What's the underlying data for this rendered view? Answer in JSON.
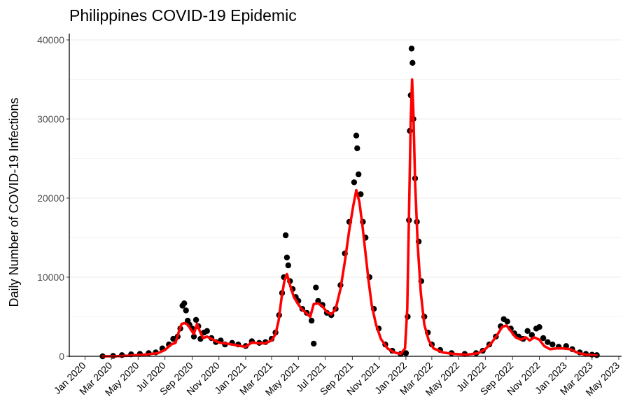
{
  "chart_data": {
    "type": "scatter",
    "title": "Philippines COVID-19 Epidemic",
    "xlabel": "",
    "ylabel": "Daily Number of COVID-19 Infections",
    "xlim": [
      "2020-01-01",
      "2023-05-01"
    ],
    "ylim": [
      0,
      40000
    ],
    "y_ticks": [
      0,
      10000,
      20000,
      30000,
      40000
    ],
    "x_ticks": [
      {
        "date": "2020-01-01",
        "label": "Jan 2020"
      },
      {
        "date": "2020-03-01",
        "label": "Mar 2020"
      },
      {
        "date": "2020-05-01",
        "label": "May 2020"
      },
      {
        "date": "2020-07-01",
        "label": "Jul 2020"
      },
      {
        "date": "2020-09-01",
        "label": "Sep 2020"
      },
      {
        "date": "2020-11-01",
        "label": "Nov 2020"
      },
      {
        "date": "2021-01-01",
        "label": "Jan 2021"
      },
      {
        "date": "2021-03-01",
        "label": "Mar 2021"
      },
      {
        "date": "2021-05-01",
        "label": "May 2021"
      },
      {
        "date": "2021-07-01",
        "label": "Jul 2021"
      },
      {
        "date": "2021-09-01",
        "label": "Sep 2021"
      },
      {
        "date": "2021-11-01",
        "label": "Nov 2021"
      },
      {
        "date": "2022-01-01",
        "label": "Jan 2022"
      },
      {
        "date": "2022-03-01",
        "label": "Mar 2022"
      },
      {
        "date": "2022-05-01",
        "label": "May 2022"
      },
      {
        "date": "2022-07-01",
        "label": "Jul 2022"
      },
      {
        "date": "2022-09-01",
        "label": "Sep 2022"
      },
      {
        "date": "2022-11-01",
        "label": "Nov 2022"
      },
      {
        "date": "2023-01-01",
        "label": "Jan 2023"
      },
      {
        "date": "2023-03-01",
        "label": "Mar 2023"
      },
      {
        "date": "2023-05-01",
        "label": "May 2023"
      }
    ],
    "grid": "horizontal",
    "series": [
      {
        "kind": "points",
        "color": "#000000",
        "points": [
          {
            "x": "2020-02-10",
            "y": 0
          },
          {
            "x": "2020-03-05",
            "y": 50
          },
          {
            "x": "2020-03-25",
            "y": 150
          },
          {
            "x": "2020-04-15",
            "y": 250
          },
          {
            "x": "2020-05-05",
            "y": 300
          },
          {
            "x": "2020-05-25",
            "y": 400
          },
          {
            "x": "2020-06-10",
            "y": 500
          },
          {
            "x": "2020-06-25",
            "y": 1000
          },
          {
            "x": "2020-07-10",
            "y": 1500
          },
          {
            "x": "2020-07-20",
            "y": 2200
          },
          {
            "x": "2020-07-30",
            "y": 2500
          },
          {
            "x": "2020-08-05",
            "y": 3500
          },
          {
            "x": "2020-08-10",
            "y": 6400
          },
          {
            "x": "2020-08-14",
            "y": 6700
          },
          {
            "x": "2020-08-18",
            "y": 5800
          },
          {
            "x": "2020-08-22",
            "y": 4500
          },
          {
            "x": "2020-08-26",
            "y": 4000
          },
          {
            "x": "2020-09-01",
            "y": 3500
          },
          {
            "x": "2020-09-05",
            "y": 2500
          },
          {
            "x": "2020-09-10",
            "y": 4600
          },
          {
            "x": "2020-09-15",
            "y": 3800
          },
          {
            "x": "2020-09-20",
            "y": 2200
          },
          {
            "x": "2020-09-28",
            "y": 3000
          },
          {
            "x": "2020-10-05",
            "y": 3200
          },
          {
            "x": "2020-10-15",
            "y": 2300
          },
          {
            "x": "2020-10-25",
            "y": 1800
          },
          {
            "x": "2020-11-05",
            "y": 2000
          },
          {
            "x": "2020-11-15",
            "y": 1500
          },
          {
            "x": "2020-12-01",
            "y": 1700
          },
          {
            "x": "2020-12-15",
            "y": 1500
          },
          {
            "x": "2021-01-01",
            "y": 1300
          },
          {
            "x": "2021-01-15",
            "y": 1900
          },
          {
            "x": "2021-02-01",
            "y": 1700
          },
          {
            "x": "2021-02-15",
            "y": 1800
          },
          {
            "x": "2021-03-01",
            "y": 2200
          },
          {
            "x": "2021-03-10",
            "y": 3000
          },
          {
            "x": "2021-03-18",
            "y": 5200
          },
          {
            "x": "2021-03-25",
            "y": 8000
          },
          {
            "x": "2021-03-29",
            "y": 10000
          },
          {
            "x": "2021-04-02",
            "y": 15300
          },
          {
            "x": "2021-04-05",
            "y": 12500
          },
          {
            "x": "2021-04-08",
            "y": 11500
          },
          {
            "x": "2021-04-12",
            "y": 9500
          },
          {
            "x": "2021-04-18",
            "y": 8500
          },
          {
            "x": "2021-04-25",
            "y": 7500
          },
          {
            "x": "2021-05-01",
            "y": 7000
          },
          {
            "x": "2021-05-10",
            "y": 6000
          },
          {
            "x": "2021-05-20",
            "y": 5500
          },
          {
            "x": "2021-05-31",
            "y": 4500
          },
          {
            "x": "2021-06-05",
            "y": 1600
          },
          {
            "x": "2021-06-10",
            "y": 8700
          },
          {
            "x": "2021-06-15",
            "y": 7000
          },
          {
            "x": "2021-06-25",
            "y": 6500
          },
          {
            "x": "2021-07-05",
            "y": 5500
          },
          {
            "x": "2021-07-15",
            "y": 5200
          },
          {
            "x": "2021-07-25",
            "y": 6000
          },
          {
            "x": "2021-08-05",
            "y": 9000
          },
          {
            "x": "2021-08-15",
            "y": 13000
          },
          {
            "x": "2021-08-25",
            "y": 17000
          },
          {
            "x": "2021-09-05",
            "y": 22000
          },
          {
            "x": "2021-09-10",
            "y": 27900
          },
          {
            "x": "2021-09-12",
            "y": 26300
          },
          {
            "x": "2021-09-15",
            "y": 23000
          },
          {
            "x": "2021-09-20",
            "y": 20500
          },
          {
            "x": "2021-09-25",
            "y": 17000
          },
          {
            "x": "2021-10-01",
            "y": 15000
          },
          {
            "x": "2021-10-10",
            "y": 10000
          },
          {
            "x": "2021-10-20",
            "y": 6000
          },
          {
            "x": "2021-10-31",
            "y": 3500
          },
          {
            "x": "2021-11-15",
            "y": 1500
          },
          {
            "x": "2021-12-01",
            "y": 700
          },
          {
            "x": "2021-12-20",
            "y": 300
          },
          {
            "x": "2022-01-01",
            "y": 400
          },
          {
            "x": "2022-01-05",
            "y": 5000
          },
          {
            "x": "2022-01-08",
            "y": 17200
          },
          {
            "x": "2022-01-10",
            "y": 28500
          },
          {
            "x": "2022-01-12",
            "y": 33000
          },
          {
            "x": "2022-01-14",
            "y": 38900
          },
          {
            "x": "2022-01-16",
            "y": 37100
          },
          {
            "x": "2022-01-18",
            "y": 30000
          },
          {
            "x": "2022-01-22",
            "y": 22500
          },
          {
            "x": "2022-01-26",
            "y": 17000
          },
          {
            "x": "2022-01-30",
            "y": 14500
          },
          {
            "x": "2022-02-05",
            "y": 9500
          },
          {
            "x": "2022-02-12",
            "y": 5000
          },
          {
            "x": "2022-02-20",
            "y": 3000
          },
          {
            "x": "2022-03-01",
            "y": 1500
          },
          {
            "x": "2022-03-20",
            "y": 800
          },
          {
            "x": "2022-04-15",
            "y": 400
          },
          {
            "x": "2022-05-15",
            "y": 300
          },
          {
            "x": "2022-06-10",
            "y": 400
          },
          {
            "x": "2022-06-25",
            "y": 700
          },
          {
            "x": "2022-07-10",
            "y": 1500
          },
          {
            "x": "2022-07-25",
            "y": 2500
          },
          {
            "x": "2022-08-05",
            "y": 3800
          },
          {
            "x": "2022-08-12",
            "y": 4700
          },
          {
            "x": "2022-08-20",
            "y": 4400
          },
          {
            "x": "2022-08-28",
            "y": 3500
          },
          {
            "x": "2022-09-05",
            "y": 2900
          },
          {
            "x": "2022-09-15",
            "y": 2500
          },
          {
            "x": "2022-09-25",
            "y": 2200
          },
          {
            "x": "2022-10-05",
            "y": 3200
          },
          {
            "x": "2022-10-15",
            "y": 2700
          },
          {
            "x": "2022-10-25",
            "y": 3500
          },
          {
            "x": "2022-11-01",
            "y": 3700
          },
          {
            "x": "2022-11-10",
            "y": 2300
          },
          {
            "x": "2022-11-20",
            "y": 1800
          },
          {
            "x": "2022-12-01",
            "y": 1500
          },
          {
            "x": "2022-12-15",
            "y": 1200
          },
          {
            "x": "2023-01-01",
            "y": 1300
          },
          {
            "x": "2023-01-15",
            "y": 900
          },
          {
            "x": "2023-02-01",
            "y": 500
          },
          {
            "x": "2023-02-15",
            "y": 300
          },
          {
            "x": "2023-03-01",
            "y": 200
          },
          {
            "x": "2023-03-12",
            "y": 150
          }
        ]
      },
      {
        "kind": "smooth-line",
        "color": "#ff0000",
        "points": [
          {
            "x": "2020-02-10",
            "y": 0
          },
          {
            "x": "2020-03-15",
            "y": 20
          },
          {
            "x": "2020-04-15",
            "y": 100
          },
          {
            "x": "2020-05-15",
            "y": 200
          },
          {
            "x": "2020-06-15",
            "y": 400
          },
          {
            "x": "2020-07-01",
            "y": 800
          },
          {
            "x": "2020-07-15",
            "y": 1500
          },
          {
            "x": "2020-07-25",
            "y": 1700
          },
          {
            "x": "2020-08-01",
            "y": 3000
          },
          {
            "x": "2020-08-08",
            "y": 4100
          },
          {
            "x": "2020-08-15",
            "y": 4200
          },
          {
            "x": "2020-08-22",
            "y": 4000
          },
          {
            "x": "2020-08-29",
            "y": 3400
          },
          {
            "x": "2020-09-05",
            "y": 2800
          },
          {
            "x": "2020-09-12",
            "y": 4100
          },
          {
            "x": "2020-09-19",
            "y": 3100
          },
          {
            "x": "2020-09-26",
            "y": 2300
          },
          {
            "x": "2020-10-05",
            "y": 2500
          },
          {
            "x": "2020-10-15",
            "y": 2200
          },
          {
            "x": "2020-10-25",
            "y": 1900
          },
          {
            "x": "2020-11-05",
            "y": 1700
          },
          {
            "x": "2020-11-20",
            "y": 1600
          },
          {
            "x": "2020-12-05",
            "y": 1450
          },
          {
            "x": "2020-12-20",
            "y": 1300
          },
          {
            "x": "2021-01-01",
            "y": 1200
          },
          {
            "x": "2021-01-15",
            "y": 1750
          },
          {
            "x": "2021-02-01",
            "y": 1650
          },
          {
            "x": "2021-02-15",
            "y": 1650
          },
          {
            "x": "2021-03-01",
            "y": 2000
          },
          {
            "x": "2021-03-10",
            "y": 2800
          },
          {
            "x": "2021-03-17",
            "y": 4500
          },
          {
            "x": "2021-03-24",
            "y": 7500
          },
          {
            "x": "2021-03-30",
            "y": 9500
          },
          {
            "x": "2021-04-05",
            "y": 10400
          },
          {
            "x": "2021-04-12",
            "y": 9000
          },
          {
            "x": "2021-04-20",
            "y": 7600
          },
          {
            "x": "2021-04-28",
            "y": 6800
          },
          {
            "x": "2021-05-08",
            "y": 6000
          },
          {
            "x": "2021-05-18",
            "y": 5500
          },
          {
            "x": "2021-05-28",
            "y": 5000
          },
          {
            "x": "2021-06-05",
            "y": 6600
          },
          {
            "x": "2021-06-15",
            "y": 6700
          },
          {
            "x": "2021-06-25",
            "y": 6300
          },
          {
            "x": "2021-07-05",
            "y": 5600
          },
          {
            "x": "2021-07-15",
            "y": 5300
          },
          {
            "x": "2021-07-25",
            "y": 6000
          },
          {
            "x": "2021-08-05",
            "y": 8500
          },
          {
            "x": "2021-08-15",
            "y": 12000
          },
          {
            "x": "2021-08-25",
            "y": 16000
          },
          {
            "x": "2021-09-03",
            "y": 19000
          },
          {
            "x": "2021-09-10",
            "y": 21000
          },
          {
            "x": "2021-09-17",
            "y": 19500
          },
          {
            "x": "2021-09-24",
            "y": 16500
          },
          {
            "x": "2021-10-01",
            "y": 13000
          },
          {
            "x": "2021-10-08",
            "y": 9500
          },
          {
            "x": "2021-10-15",
            "y": 6500
          },
          {
            "x": "2021-10-25",
            "y": 4000
          },
          {
            "x": "2021-11-05",
            "y": 2200
          },
          {
            "x": "2021-11-20",
            "y": 1000
          },
          {
            "x": "2021-12-05",
            "y": 500
          },
          {
            "x": "2021-12-20",
            "y": 300
          },
          {
            "x": "2021-12-30",
            "y": 1000
          },
          {
            "x": "2022-01-04",
            "y": 6000
          },
          {
            "x": "2022-01-08",
            "y": 18000
          },
          {
            "x": "2022-01-12",
            "y": 30000
          },
          {
            "x": "2022-01-15",
            "y": 35000
          },
          {
            "x": "2022-01-18",
            "y": 31000
          },
          {
            "x": "2022-01-22",
            "y": 22000
          },
          {
            "x": "2022-01-28",
            "y": 14000
          },
          {
            "x": "2022-02-04",
            "y": 8000
          },
          {
            "x": "2022-02-12",
            "y": 4000
          },
          {
            "x": "2022-02-22",
            "y": 2000
          },
          {
            "x": "2022-03-05",
            "y": 1000
          },
          {
            "x": "2022-03-25",
            "y": 500
          },
          {
            "x": "2022-04-20",
            "y": 300
          },
          {
            "x": "2022-05-20",
            "y": 200
          },
          {
            "x": "2022-06-15",
            "y": 400
          },
          {
            "x": "2022-07-01",
            "y": 900
          },
          {
            "x": "2022-07-15",
            "y": 1700
          },
          {
            "x": "2022-07-28",
            "y": 2700
          },
          {
            "x": "2022-08-08",
            "y": 3700
          },
          {
            "x": "2022-08-18",
            "y": 3900
          },
          {
            "x": "2022-08-28",
            "y": 3200
          },
          {
            "x": "2022-09-08",
            "y": 2400
          },
          {
            "x": "2022-09-20",
            "y": 2100
          },
          {
            "x": "2022-10-01",
            "y": 2400
          },
          {
            "x": "2022-10-10",
            "y": 2000
          },
          {
            "x": "2022-10-20",
            "y": 2400
          },
          {
            "x": "2022-11-01",
            "y": 2100
          },
          {
            "x": "2022-11-12",
            "y": 1300
          },
          {
            "x": "2022-11-25",
            "y": 900
          },
          {
            "x": "2022-12-10",
            "y": 1000
          },
          {
            "x": "2022-12-25",
            "y": 1000
          },
          {
            "x": "2023-01-10",
            "y": 900
          },
          {
            "x": "2023-01-25",
            "y": 500
          },
          {
            "x": "2023-02-10",
            "y": 250
          },
          {
            "x": "2023-02-25",
            "y": 150
          },
          {
            "x": "2023-03-12",
            "y": 100
          }
        ]
      }
    ]
  }
}
